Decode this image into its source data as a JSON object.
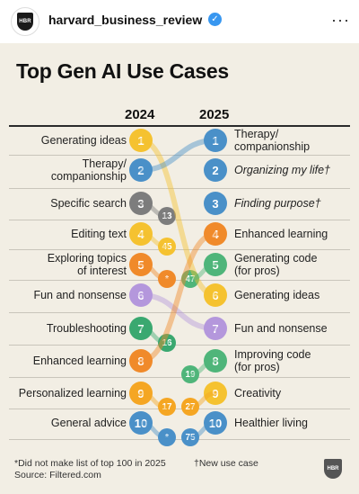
{
  "post": {
    "username": "harvard_business_review",
    "avatar_text": "HBR",
    "more": "···",
    "verified_mark": "✓"
  },
  "infographic": {
    "title": "Top Gen AI Use Cases",
    "col_2024": "2024",
    "col_2025": "2025",
    "left": [
      {
        "label": "Generating ideas",
        "rank": "1"
      },
      {
        "label": "Therapy/\ncompanionship",
        "rank": "2"
      },
      {
        "label": "Specific search",
        "rank": "3"
      },
      {
        "label": "Editing text",
        "rank": "4"
      },
      {
        "label": "Exploring topics\nof interest",
        "rank": "5"
      },
      {
        "label": "Fun and nonsense",
        "rank": "6"
      },
      {
        "label": "Troubleshooting",
        "rank": "7"
      },
      {
        "label": "Enhanced learning",
        "rank": "8"
      },
      {
        "label": "Personalized learning",
        "rank": "9"
      },
      {
        "label": "General advice",
        "rank": "10"
      }
    ],
    "right": [
      {
        "label": "Therapy/\ncompanionship",
        "rank": "1"
      },
      {
        "label": "Organizing my life†",
        "rank": "2"
      },
      {
        "label": "Finding purpose†",
        "rank": "3"
      },
      {
        "label": "Enhanced learning",
        "rank": "4"
      },
      {
        "label": "Generating code\n(for pros)",
        "rank": "5"
      },
      {
        "label": "Generating ideas",
        "rank": "6"
      },
      {
        "label": "Fun and nonsense",
        "rank": "7"
      },
      {
        "label": "Improving code\n(for pros)",
        "rank": "8"
      },
      {
        "label": "Creativity",
        "rank": "9"
      },
      {
        "label": "Healthier living",
        "rank": "10"
      }
    ],
    "moved": [
      {
        "rank": "13",
        "source_row": 3
      },
      {
        "rank": "45",
        "source_row": 4
      },
      {
        "rank": "*",
        "source_row": 5
      },
      {
        "rank": "47",
        "target_row": 5
      },
      {
        "rank": "16",
        "source_row": 7
      },
      {
        "rank": "19",
        "target_row": 8
      },
      {
        "rank": "17",
        "source_row": 9
      },
      {
        "rank": "27",
        "target_row": 9
      },
      {
        "rank": "*",
        "source_row": 10
      },
      {
        "rank": "75",
        "target_row": 10
      }
    ],
    "footnote_left": "*Did not make list of top 100 in 2025",
    "footnote_right": "†New use case",
    "source": "Source: Filtered.com",
    "logo_text": "HBR",
    "colors": {
      "1": "#f5c230",
      "2": "#4a90c8",
      "3": "#7d7d7d",
      "4": "#f5c230",
      "5": "#f08a2a",
      "6": "#b497dc",
      "7": "#3aa870",
      "8": "#f08a2a",
      "9": "#f5a623",
      "10": "#4a90c8",
      "green": "#4fb57a",
      "background": "#f2eee4"
    }
  }
}
